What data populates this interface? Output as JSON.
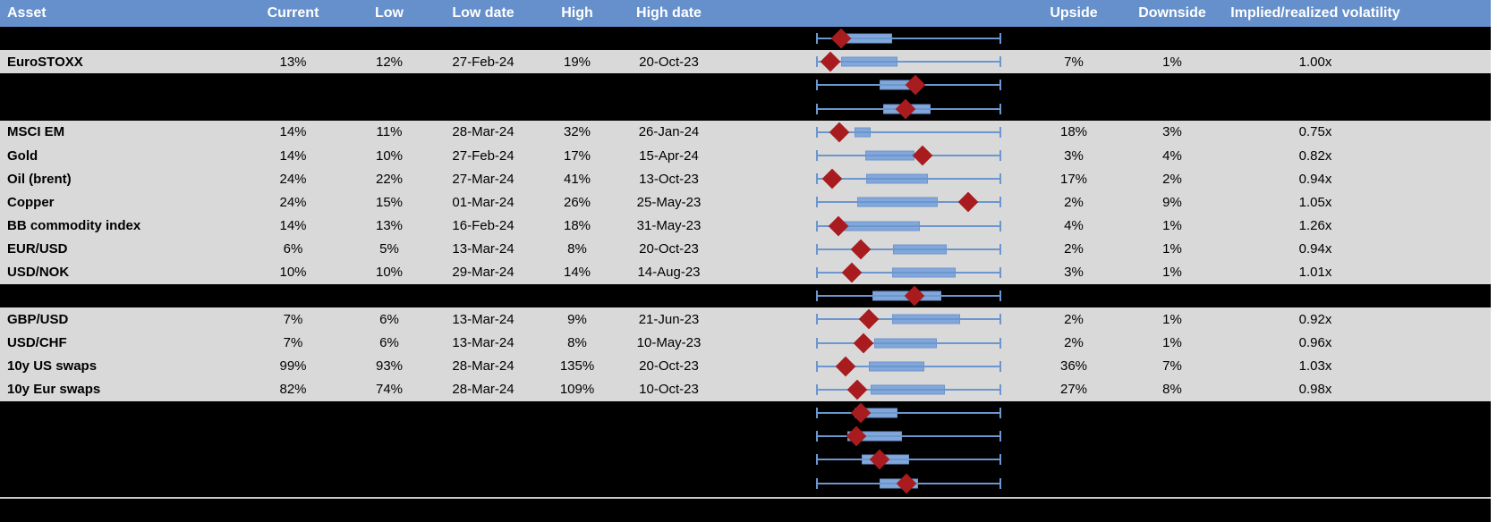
{
  "colors": {
    "header_bg": "#6590CB",
    "header_text": "#FFFFFF",
    "row_gray": "#D9D9D9",
    "row_black": "#000000",
    "whisker_blue": "#6B96CE",
    "box_fill": "#82A7DA",
    "box_border": "#6D95CD",
    "diamond_red": "#A81C1F",
    "separator_line": "#C9C9C9",
    "right_strip": "#FFFFFF"
  },
  "header": {
    "columns": [
      "Asset",
      "Current",
      "Low",
      "Low date",
      "High",
      "High date",
      "",
      "Upside",
      "Downside",
      "Implied/realized volatility"
    ]
  },
  "rows": [
    {
      "type": "black"
    },
    {
      "type": "data",
      "asset": "EuroSTOXX",
      "current": "13%",
      "low": "12%",
      "low_date": "27-Feb-24",
      "high": "19%",
      "high_date": "20-Oct-23",
      "upside": "7%",
      "downside": "1%",
      "implied_realized": "1.00x"
    },
    {
      "type": "black"
    },
    {
      "type": "black"
    },
    {
      "type": "data",
      "asset": "MSCI EM",
      "current": "14%",
      "low": "11%",
      "low_date": "28-Mar-24",
      "high": "32%",
      "high_date": "26-Jan-24",
      "upside": "18%",
      "downside": "3%",
      "implied_realized": "0.75x"
    },
    {
      "type": "data",
      "asset": "Gold",
      "current": "14%",
      "low": "10%",
      "low_date": "27-Feb-24",
      "high": "17%",
      "high_date": "15-Apr-24",
      "upside": "3%",
      "downside": "4%",
      "implied_realized": "0.82x"
    },
    {
      "type": "data",
      "asset": "Oil (brent)",
      "current": "24%",
      "low": "22%",
      "low_date": "27-Mar-24",
      "high": "41%",
      "high_date": "13-Oct-23",
      "upside": "17%",
      "downside": "2%",
      "implied_realized": "0.94x"
    },
    {
      "type": "data",
      "asset": "Copper",
      "current": "24%",
      "low": "15%",
      "low_date": "01-Mar-24",
      "high": "26%",
      "high_date": "25-May-23",
      "upside": "2%",
      "downside": "9%",
      "implied_realized": "1.05x"
    },
    {
      "type": "data",
      "asset": "BB commodity index",
      "current": "14%",
      "low": "13%",
      "low_date": "16-Feb-24",
      "high": "18%",
      "high_date": "31-May-23",
      "upside": "4%",
      "downside": "1%",
      "implied_realized": "1.26x"
    },
    {
      "type": "data",
      "asset": "EUR/USD",
      "current": "6%",
      "low": "5%",
      "low_date": "13-Mar-24",
      "high": "8%",
      "high_date": "20-Oct-23",
      "upside": "2%",
      "downside": "1%",
      "implied_realized": "0.94x"
    },
    {
      "type": "data",
      "asset": "USD/NOK",
      "current": "10%",
      "low": "10%",
      "low_date": "29-Mar-24",
      "high": "14%",
      "high_date": "14-Aug-23",
      "upside": "3%",
      "downside": "1%",
      "implied_realized": "1.01x"
    },
    {
      "type": "black"
    },
    {
      "type": "data",
      "asset": "GBP/USD",
      "current": "7%",
      "low": "6%",
      "low_date": "13-Mar-24",
      "high": "9%",
      "high_date": "21-Jun-23",
      "upside": "2%",
      "downside": "1%",
      "implied_realized": "0.92x"
    },
    {
      "type": "data",
      "asset": "USD/CHF",
      "current": "7%",
      "low": "6%",
      "low_date": "13-Mar-24",
      "high": "8%",
      "high_date": "10-May-23",
      "upside": "2%",
      "downside": "1%",
      "implied_realized": "0.96x"
    },
    {
      "type": "data",
      "asset": "10y US swaps",
      "current": "99%",
      "low": "93%",
      "low_date": "28-Mar-24",
      "high": "135%",
      "high_date": "20-Oct-23",
      "upside": "36%",
      "downside": "7%",
      "implied_realized": "1.03x"
    },
    {
      "type": "data",
      "asset": "10y Eur swaps",
      "current": "82%",
      "low": "74%",
      "low_date": "28-Mar-24",
      "high": "109%",
      "high_date": "10-Oct-23",
      "upside": "27%",
      "downside": "8%",
      "implied_realized": "0.98x"
    },
    {
      "type": "black"
    },
    {
      "type": "black"
    },
    {
      "type": "black"
    },
    {
      "type": "black"
    }
  ],
  "chart_data": {
    "type": "boxplot",
    "title": "",
    "xlabel": "",
    "ylabel": "",
    "x_range": [
      0,
      1
    ],
    "note": "Horizontal normalized 52-week volatility range per row: whisker spans the full low-to-high range (0 to 1), blue box marks the middle range, red diamond marks the current level.",
    "legend": [
      "range whisker",
      "middle range box",
      "current level marker"
    ],
    "rows": [
      {
        "asset": "",
        "box": [
          0.146,
          0.41
        ],
        "marker": 0.132
      },
      {
        "asset": "EuroSTOXX",
        "box": [
          0.132,
          0.439
        ],
        "marker": 0.073
      },
      {
        "asset": "",
        "box": [
          0.341,
          0.546
        ],
        "marker": 0.537
      },
      {
        "asset": "",
        "box": [
          0.361,
          0.62
        ],
        "marker": 0.483
      },
      {
        "asset": "MSCI EM",
        "box": [
          0.205,
          0.293
        ],
        "marker": 0.122
      },
      {
        "asset": "Gold",
        "box": [
          0.263,
          0.532
        ],
        "marker": 0.576
      },
      {
        "asset": "Oil (brent)",
        "box": [
          0.268,
          0.605
        ],
        "marker": 0.083
      },
      {
        "asset": "Copper",
        "box": [
          0.22,
          0.659
        ],
        "marker": 0.824
      },
      {
        "asset": "BB commodity index",
        "box": [
          0.141,
          0.561
        ],
        "marker": 0.117
      },
      {
        "asset": "EUR/USD",
        "box": [
          0.415,
          0.707
        ],
        "marker": 0.239
      },
      {
        "asset": "USD/NOK",
        "box": [
          0.41,
          0.756
        ],
        "marker": 0.19
      },
      {
        "asset": "",
        "box": [
          0.302,
          0.678
        ],
        "marker": 0.532
      },
      {
        "asset": "GBP/USD",
        "box": [
          0.41,
          0.78
        ],
        "marker": 0.283
      },
      {
        "asset": "USD/CHF",
        "box": [
          0.312,
          0.654
        ],
        "marker": 0.254
      },
      {
        "asset": "10y US swaps",
        "box": [
          0.283,
          0.585
        ],
        "marker": 0.156
      },
      {
        "asset": "10y Eur swaps",
        "box": [
          0.293,
          0.698
        ],
        "marker": 0.22
      },
      {
        "asset": "",
        "box": [
          0.205,
          0.439
        ],
        "marker": 0.239
      },
      {
        "asset": "",
        "box": [
          0.166,
          0.463
        ],
        "marker": 0.215
      },
      {
        "asset": "",
        "box": [
          0.244,
          0.502
        ],
        "marker": 0.341
      },
      {
        "asset": "",
        "box": [
          0.341,
          0.551
        ],
        "marker": 0.488
      }
    ]
  }
}
